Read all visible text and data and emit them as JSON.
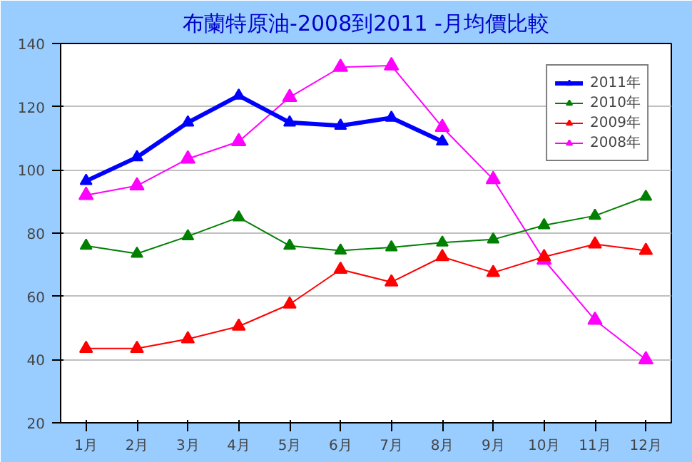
{
  "chart_data": {
    "type": "line",
    "title": "布蘭特原油-2008到2011 -月均價比較",
    "categories": [
      "1月",
      "2月",
      "3月",
      "4月",
      "5月",
      "6月",
      "7月",
      "8月",
      "9月",
      "10月",
      "11月",
      "12月"
    ],
    "series": [
      {
        "name": "2011年",
        "color": "#0000ff",
        "values": [
          96.5,
          104,
          115,
          123.5,
          115,
          114,
          116.5,
          109,
          null,
          null,
          null,
          null
        ]
      },
      {
        "name": "2010年",
        "color": "#008000",
        "values": [
          76,
          73.5,
          79,
          85,
          76,
          74.5,
          75.5,
          77,
          78,
          82.5,
          85.5,
          91.5
        ]
      },
      {
        "name": "2009年",
        "color": "#ff0000",
        "values": [
          43.5,
          43.5,
          46.5,
          50.5,
          57.5,
          68.5,
          64.5,
          72.5,
          67.5,
          72.5,
          76.5,
          74.5
        ]
      },
      {
        "name": "2008年",
        "color": "#ff00ff",
        "values": [
          92,
          95,
          103.5,
          109,
          123,
          132.5,
          133,
          113.5,
          97,
          71.5,
          52.5,
          40
        ]
      }
    ],
    "ylim": [
      20,
      140
    ],
    "yticks": [
      20,
      40,
      60,
      80,
      100,
      120,
      140
    ],
    "grid": "y",
    "legend": "top right",
    "marker": "triangle"
  }
}
